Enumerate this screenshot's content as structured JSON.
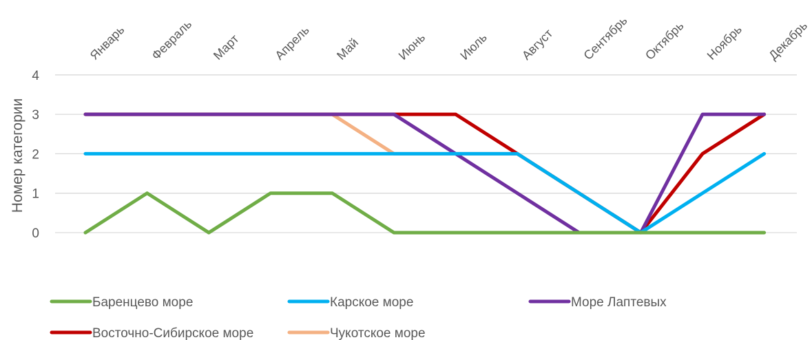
{
  "chart_data": {
    "type": "line",
    "title": "",
    "xlabel": "",
    "ylabel": "Номер категории",
    "ylim": [
      0,
      4
    ],
    "yticks": [
      "0",
      "1",
      "2",
      "3",
      "4"
    ],
    "grid": true,
    "legend_position": "bottom",
    "categories": [
      "Январь",
      "Февраль",
      "Март",
      "Апрель",
      "Май",
      "Июнь",
      "Июль",
      "Август",
      "Сентябрь",
      "Октябрь",
      "Ноябрь",
      "Декабрь"
    ],
    "series": [
      {
        "name": "Баренцево море",
        "color": "#70ad47",
        "values": [
          0,
          1,
          0,
          1,
          1,
          0,
          0,
          0,
          0,
          0,
          0,
          0
        ]
      },
      {
        "name": "Карское море",
        "color": "#00b0f0",
        "values": [
          2,
          2,
          2,
          2,
          2,
          2,
          2,
          2,
          1,
          0,
          1,
          2
        ]
      },
      {
        "name": "Море Лаптевых",
        "color": "#7030a0",
        "values": [
          3,
          3,
          3,
          3,
          3,
          3,
          2,
          1,
          0,
          0,
          3,
          3
        ]
      },
      {
        "name": "Восточно-Сибирское море",
        "color": "#c00000",
        "values": [
          3,
          3,
          3,
          3,
          3,
          3,
          3,
          2,
          1,
          0,
          2,
          3
        ]
      },
      {
        "name": "Чукотское море",
        "color": "#f4b183",
        "values": [
          3,
          3,
          3,
          3,
          3,
          2,
          2,
          2,
          1,
          0,
          2,
          3
        ]
      }
    ]
  }
}
